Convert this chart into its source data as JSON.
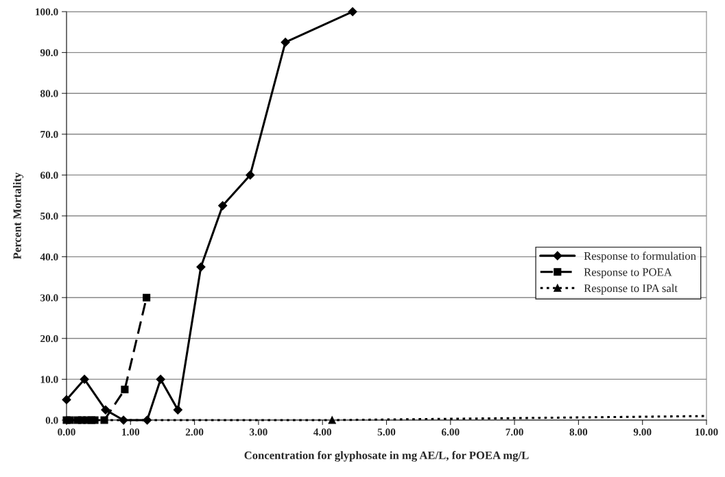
{
  "chart_data": {
    "type": "line",
    "xlabel": "Concentration for glyphosate in mg AE/L, for POEA mg/L",
    "ylabel": "Percent Mortality",
    "series": [
      {
        "name": "Response to formulation",
        "color": "#000000",
        "marker": "diamond",
        "line_style": "solid",
        "x": [
          0.0,
          0.28,
          0.61,
          0.89,
          1.26,
          1.47,
          1.74,
          2.1,
          2.44,
          2.87,
          3.42,
          4.47
        ],
        "values": [
          5.0,
          10.0,
          2.5,
          0.0,
          0.0,
          10.0,
          2.5,
          37.5,
          52.5,
          60.0,
          92.5,
          100.0
        ]
      },
      {
        "name": "Response to POEA",
        "color": "#000000",
        "marker": "square",
        "line_style": "dashed",
        "x": [
          0.0,
          0.05,
          0.17,
          0.24,
          0.32,
          0.39,
          0.44,
          0.59,
          0.91,
          1.25
        ],
        "values": [
          0.0,
          0.0,
          0.0,
          0.0,
          0.0,
          0.0,
          0.0,
          0.0,
          7.5,
          30.0
        ]
      },
      {
        "name": "Response to IPA salt",
        "color": "#000000",
        "marker": "triangle",
        "line_style": "dotted",
        "x": [
          4.15
        ],
        "values": [
          0.0
        ]
      },
      {
        "type": "line",
        "color": "#000000",
        "marker": "none",
        "line_style": "dotted",
        "x": [
          0.0,
          4.15,
          10.0
        ],
        "values": [
          0.0,
          0.0,
          1.0
        ]
      }
    ],
    "xlim": [
      0,
      10
    ],
    "xticks": [
      {
        "value": 0,
        "label": "0.00"
      },
      {
        "value": 1,
        "label": "1.00"
      },
      {
        "value": 2,
        "label": "2.00"
      },
      {
        "value": 3,
        "label": "3.00"
      },
      {
        "value": 4,
        "label": "4.00"
      },
      {
        "value": 5,
        "label": "5.00"
      },
      {
        "value": 6,
        "label": "6.00"
      },
      {
        "value": 7,
        "label": "7.00"
      },
      {
        "value": 8,
        "label": "8.00"
      },
      {
        "value": 9,
        "label": "9.00"
      },
      {
        "value": 10,
        "label": "10.00"
      }
    ],
    "ylim": [
      0,
      100
    ],
    "yticks": [
      {
        "value": 0,
        "label": "0.0"
      },
      {
        "value": 10,
        "label": "10.0"
      },
      {
        "value": 20,
        "label": "20.0"
      },
      {
        "value": 30,
        "label": "30.0"
      },
      {
        "value": 40,
        "label": "40.0"
      },
      {
        "value": 50,
        "label": "50.0"
      },
      {
        "value": 60,
        "label": "60.0"
      },
      {
        "value": 70,
        "label": "70.0"
      },
      {
        "value": 80,
        "label": "80.0"
      },
      {
        "value": 90,
        "label": "90.0"
      },
      {
        "value": 100,
        "label": "100.0"
      }
    ],
    "grid": "y",
    "legend": "right"
  }
}
